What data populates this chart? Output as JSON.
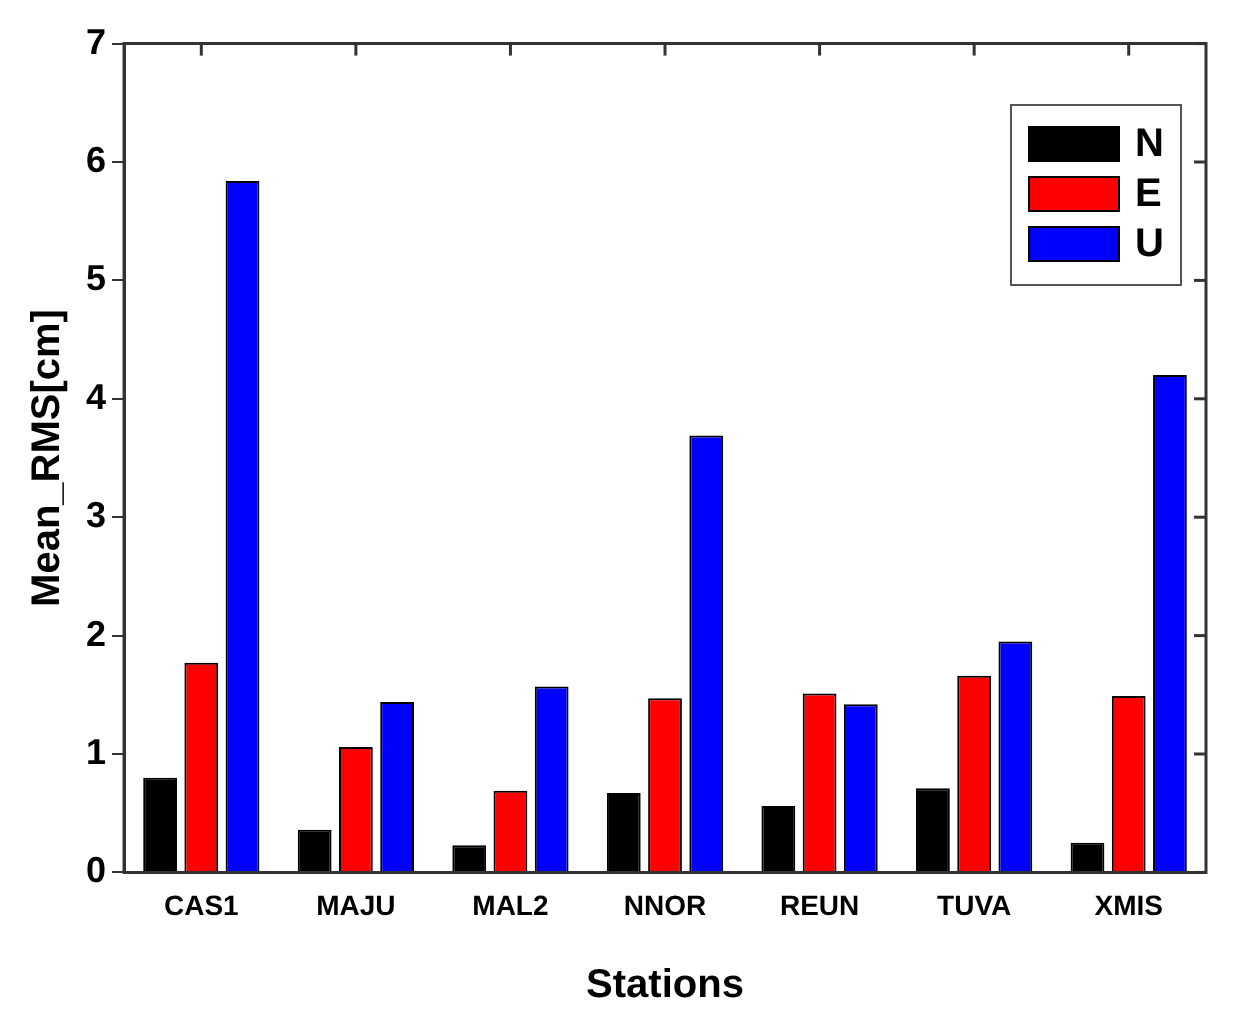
{
  "chart_data": {
    "type": "bar",
    "xlabel": "Stations",
    "ylabel": "Mean_RMS[cm]",
    "categories": [
      "CAS1",
      "MAJU",
      "MAL2",
      "NNOR",
      "REUN",
      "TUVA",
      "XMIS"
    ],
    "series": [
      {
        "name": "N",
        "color": "#000000",
        "values": [
          0.8,
          0.36,
          0.23,
          0.67,
          0.56,
          0.71,
          0.25
        ]
      },
      {
        "name": "E",
        "color": "#ff0000",
        "values": [
          1.77,
          1.06,
          0.69,
          1.47,
          1.51,
          1.66,
          1.49
        ]
      },
      {
        "name": "U",
        "color": "#0000ff",
        "values": [
          5.84,
          1.44,
          1.57,
          3.69,
          1.42,
          1.95,
          4.2
        ]
      }
    ],
    "ylim": [
      0,
      7
    ],
    "yticks": [
      0,
      1,
      2,
      3,
      4,
      5,
      6,
      7
    ],
    "grid": false,
    "legend": "top right"
  }
}
